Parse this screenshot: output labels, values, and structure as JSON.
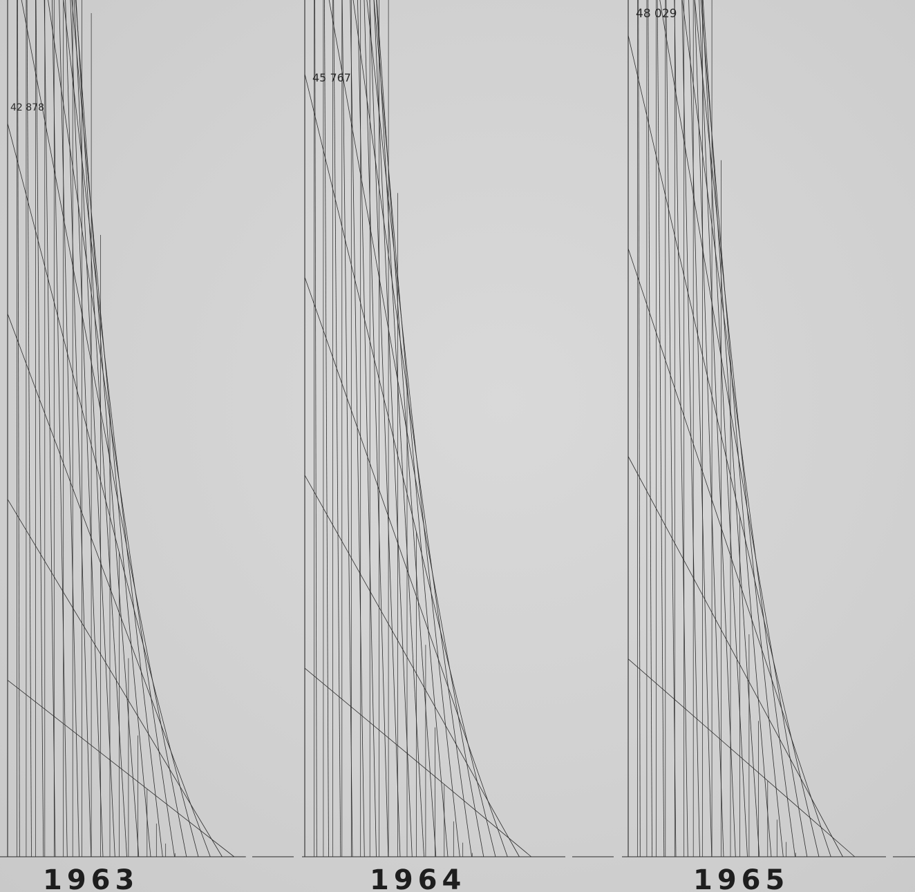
{
  "chart_data": {
    "type": "bar",
    "title": "",
    "xlabel": "",
    "ylabel": "",
    "categories": [
      "1963",
      "1964",
      "1965"
    ],
    "values": [
      42878,
      45767,
      48029
    ],
    "value_labels": [
      "42 878",
      "45 767",
      "48 029"
    ],
    "bar_style": "string-art envelope curve under a stepped outline",
    "grid": false,
    "legend": "none",
    "colors": {
      "line": "#2b2b2b",
      "paper": "#d3d3d3"
    }
  }
}
